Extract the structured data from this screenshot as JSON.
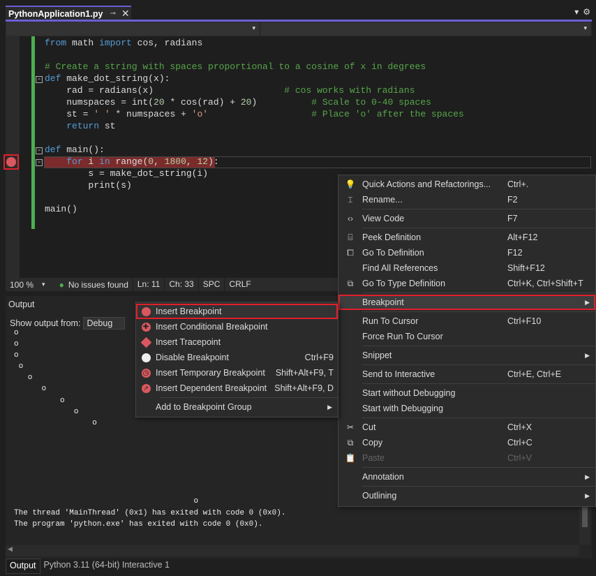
{
  "tab": {
    "title": "PythonApplication1.py",
    "pin_icon": "pin-icon",
    "close_icon": "close-icon"
  },
  "editor": {
    "lines": [
      [
        [
          "from",
          "kw"
        ],
        [
          " math ",
          "id"
        ],
        [
          "import",
          "kw"
        ],
        [
          " cos, radians",
          "id"
        ]
      ],
      [],
      [
        [
          "# Create a string with spaces proportional to a cosine of x in degrees",
          "cm"
        ]
      ],
      [
        [
          "def",
          "kw"
        ],
        [
          " make_dot_string(x):",
          "id"
        ]
      ],
      [
        [
          "    rad = radians(x)                        ",
          "id"
        ],
        [
          "# cos works with radians",
          "cm"
        ]
      ],
      [
        [
          "    numspaces = int(",
          "id"
        ],
        [
          "20",
          "num"
        ],
        [
          " * cos(rad) + ",
          "id"
        ],
        [
          "20",
          "num"
        ],
        [
          ")          ",
          "id"
        ],
        [
          "# Scale to 0-40 spaces",
          "cm"
        ]
      ],
      [
        [
          "    st = ",
          "id"
        ],
        [
          "' '",
          "str"
        ],
        [
          " * numspaces + ",
          "id"
        ],
        [
          "'o'",
          "str"
        ],
        [
          "                   ",
          "id"
        ],
        [
          "# Place 'o' after the spaces",
          "cm"
        ]
      ],
      [
        [
          "    ",
          "id"
        ],
        [
          "return",
          "kw"
        ],
        [
          " st",
          "id"
        ]
      ],
      [],
      [
        [
          "def",
          "kw"
        ],
        [
          " main():",
          "id"
        ]
      ],
      [
        [
          "    ",
          "id"
        ],
        [
          "for",
          "kw"
        ],
        [
          " i ",
          "id"
        ],
        [
          "in",
          "kw"
        ],
        [
          " range(",
          "id"
        ],
        [
          "0",
          "num"
        ],
        [
          ", ",
          "id"
        ],
        [
          "1800",
          "num"
        ],
        [
          ", ",
          "id"
        ],
        [
          "12",
          "num"
        ],
        [
          "):",
          "id"
        ]
      ],
      [
        [
          "        s = make_dot_string(i)",
          "id"
        ]
      ],
      [
        [
          "        print(s)",
          "id"
        ]
      ],
      [],
      [
        [
          "main()",
          "id"
        ]
      ]
    ],
    "breakpoint_color": "#d9585f"
  },
  "status": {
    "zoom": "100 %",
    "issues": "No issues found",
    "line": "Ln: 11",
    "col": "Ch: 33",
    "spacing": "SPC",
    "eol": "CRLF"
  },
  "output": {
    "title": "Output",
    "show_from_label": "Show output from:",
    "show_from_value": "Debug",
    "lines": [
      "o",
      "o",
      "o",
      " o",
      "   o",
      "      o",
      "          o",
      "             o",
      "                 o",
      "",
      "",
      "",
      "",
      "",
      "",
      "                                       o",
      "The thread 'MainThread' (0x1) has exited with code 0 (0x0).",
      "The program 'python.exe' has exited with code 0 (0x0)."
    ]
  },
  "bottom_tabs": [
    "Output",
    "Python 3.11 (64-bit) Interactive 1"
  ],
  "context_menu": [
    {
      "icon": "lightbulb-icon",
      "glyph": "💡",
      "label": "Quick Actions and Refactorings...",
      "shortcut": "Ctrl+."
    },
    {
      "icon": "rename-icon",
      "glyph": "⌶",
      "label": "Rename...",
      "shortcut": "F2"
    },
    {
      "sep": true
    },
    {
      "icon": "code-icon",
      "glyph": "‹›",
      "label": "View Code",
      "shortcut": "F7"
    },
    {
      "sep": true
    },
    {
      "icon": "peek-definition-icon",
      "glyph": "⌸",
      "label": "Peek Definition",
      "shortcut": "Alt+F12"
    },
    {
      "icon": "go-to-definition-icon",
      "glyph": "⧠",
      "label": "Go To Definition",
      "shortcut": "F12"
    },
    {
      "label": "Find All References",
      "shortcut": "Shift+F12"
    },
    {
      "icon": "go-to-type-definition-icon",
      "glyph": "⧉",
      "label": "Go To Type Definition",
      "shortcut": "Ctrl+K, Ctrl+Shift+T"
    },
    {
      "sep": true
    },
    {
      "label": "Breakpoint",
      "submenu": true,
      "highlight": true
    },
    {
      "sep": true
    },
    {
      "label": "Run To Cursor",
      "shortcut": "Ctrl+F10"
    },
    {
      "label": "Force Run To Cursor"
    },
    {
      "sep": true
    },
    {
      "label": "Snippet",
      "submenu": true
    },
    {
      "sep": true
    },
    {
      "label": "Send to Interactive",
      "shortcut": "Ctrl+E, Ctrl+E"
    },
    {
      "sep": true
    },
    {
      "label": "Start without Debugging"
    },
    {
      "label": "Start with Debugging"
    },
    {
      "sep": true
    },
    {
      "icon": "cut-icon",
      "glyph": "✂",
      "label": "Cut",
      "shortcut": "Ctrl+X"
    },
    {
      "icon": "copy-icon",
      "glyph": "⧉",
      "label": "Copy",
      "shortcut": "Ctrl+C"
    },
    {
      "icon": "paste-icon",
      "glyph": "📋",
      "label": "Paste",
      "shortcut": "Ctrl+V",
      "disabled": true
    },
    {
      "sep": true
    },
    {
      "label": "Annotation",
      "submenu": true
    },
    {
      "sep": true
    },
    {
      "label": "Outlining",
      "submenu": true
    }
  ],
  "breakpoint_submenu": [
    {
      "icon": "breakpoint-icon",
      "label": "Insert Breakpoint",
      "highlight": true
    },
    {
      "icon": "conditional-breakpoint-icon",
      "label": "Insert Conditional Breakpoint"
    },
    {
      "icon": "tracepoint-icon",
      "label": "Insert Tracepoint"
    },
    {
      "icon": "disable-breakpoint-icon",
      "label": "Disable Breakpoint",
      "shortcut": "Ctrl+F9"
    },
    {
      "icon": "temporary-breakpoint-icon",
      "label": "Insert Temporary Breakpoint",
      "shortcut": "Shift+Alt+F9, T"
    },
    {
      "icon": "dependent-breakpoint-icon",
      "label": "Insert Dependent Breakpoint",
      "shortcut": "Shift+Alt+F9, D"
    },
    {
      "sep": true
    },
    {
      "label": "Add to Breakpoint Group",
      "submenu": true
    }
  ]
}
